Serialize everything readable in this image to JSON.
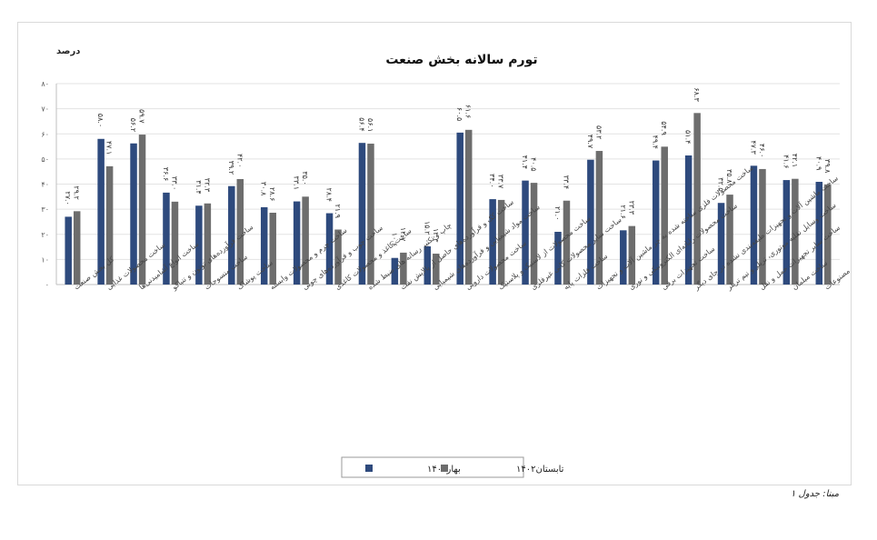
{
  "chart_data": {
    "type": "bar",
    "title": "تورم سالانه بخش صنعت",
    "ylabel": "درصد",
    "xlabel": "",
    "ylim": [
      0,
      80
    ],
    "yticks": [
      "۰",
      "۱۰",
      "۲۰",
      "۳۰",
      "۴۰",
      "۵۰",
      "۶۰",
      "۷۰",
      "۸۰"
    ],
    "grid": true,
    "legend_position": "bottom",
    "categories": [
      "کل بخش صنعت",
      "ساخت محصولات غذایی",
      "ساخت انواع آشامیدنی‌ها",
      "ساخت فرآورده‌های توتون و تنباکو",
      "ساخت منسوجات",
      "ساخت پوشاک",
      "ساخت چرم و محصولات وابسته",
      "ساخت چوب و فرآورده‌های چوبی",
      "ساخت کاغذ و محصولات کاغذی",
      "چاپ و تکثیر رسانه های ضبط شده",
      "ساخت کک و فرآورده‌های حاصل از پالایش نفت",
      "ساخت مواد شیمیایی و فرآورده‌های شیمیایی",
      "ساخت محصولات دارویی",
      "ساخت محصولات از لاستیک و پلاستیک",
      "ساخت سایر محصولات کانی غیرفلزی",
      "ساخت فلزات پایه",
      "ساخت محصولات فلزی ساخته شده به جز ماشین آلات و تجهیزات",
      "ساخت محصولات رایانه‌ای الکترونیکی و نوری",
      "ساخت تجهیزات برقی",
      "ساخت ماشین آلات و تجهیزات طبقه‌بندی نشده در جای دیگر",
      "ساخت وسایل نقلیه موتوری، تریلر و نیم تریلر",
      "ساخت سایر تجهیزات حمل و نقل",
      "ساخت مبلمان",
      "ساخت سایر مصنوعات"
    ],
    "series": [
      {
        "name": "بهار۱۴۰۲",
        "color": "#2e4a7d",
        "values": [
          27.0,
          58.0,
          56.2,
          36.6,
          31.4,
          39.2,
          30.8,
          33.1,
          28.4,
          56.4,
          10.6,
          15.2,
          60.5,
          34.0,
          41.4,
          21.0,
          49.7,
          21.6,
          49.4,
          51.4,
          32.5,
          47.3,
          41.6,
          40.9
        ],
        "labels": [
          "۲۷.۰",
          "۵۸.۰",
          "۵۶.۲",
          "۳۶.۶",
          "۳۱.۴",
          "۳۹.۲",
          "۳۰.۸",
          "۳۳.۱",
          "۲۸.۴",
          "۵۶.۴",
          "۱۰.۶",
          "۱۵.۲",
          "۶۰.۵",
          "۳۴.۰",
          "۴۱.۴",
          "۲۱.۰",
          "۴۹.۷",
          "۲۱.۶",
          "۴۹.۴",
          "۵۱.۴",
          "۳۲.۵",
          "۴۷.۳",
          "۴۱.۶",
          "۴۰.۹"
        ]
      },
      {
        "name": "تابستان۱۴۰۲",
        "color": "#6d6d6d",
        "values": [
          29.2,
          47.1,
          59.7,
          33.0,
          32.3,
          42.0,
          28.6,
          35.0,
          21.9,
          56.1,
          12.7,
          12.3,
          61.6,
          33.7,
          40.5,
          33.4,
          53.2,
          23.3,
          54.9,
          68.3,
          35.8,
          46.0,
          42.1,
          39.8
        ],
        "labels": [
          "۲۹.۲",
          "۴۷.۱",
          "۵۹.۷",
          "۳۳.۰",
          "۳۲.۳",
          "۴۲.۰",
          "۲۸.۶",
          "۳۵.۰",
          "۲۱.۹",
          "۵۶.۱",
          "۱۲.۷",
          "۱۲.۳",
          "۶۱.۶",
          "۳۳.۷",
          "۴۰.۵",
          "۳۳.۴",
          "۵۳.۲",
          "۲۳.۳",
          "۵۴.۹",
          "۶۸.۳",
          "۳۵.۸",
          "۴۶.۰",
          "۴۲.۱",
          "۳۹.۸"
        ]
      }
    ]
  },
  "source_note": "مبنا: جدول ۱"
}
